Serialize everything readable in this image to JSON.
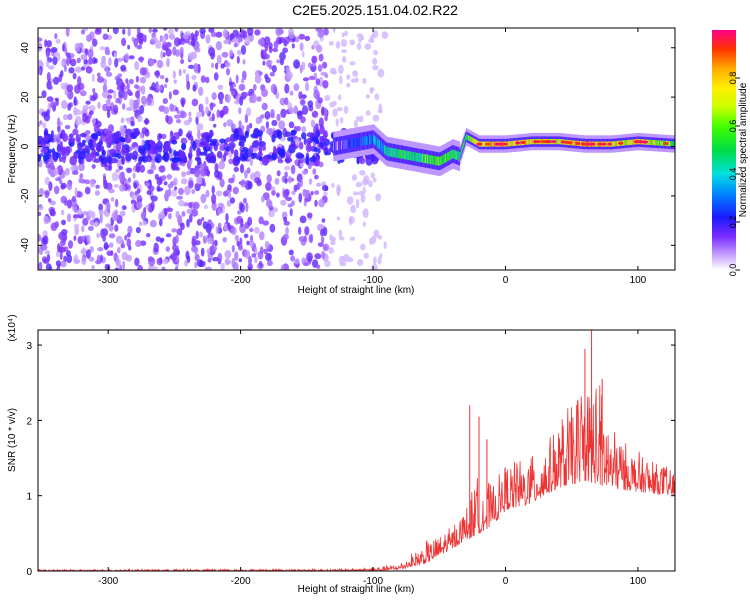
{
  "title": "C2E5.2025.151.04.02.R22",
  "chart_data": [
    {
      "type": "heatmap",
      "title": "C2E5.2025.151.04.02.R22",
      "xlabel": "Height of straight line (km)",
      "ylabel": "Frequency (Hz)",
      "xlim": [
        -353,
        128
      ],
      "ylim": [
        -50,
        48
      ],
      "xticks": [
        "-300",
        "-200",
        "-100",
        "0",
        "100"
      ],
      "yticks": [
        "-40",
        "-20",
        "0",
        "20",
        "40"
      ],
      "colorbar": {
        "label": "Normalized spectral amplitude",
        "range": [
          0,
          1
        ],
        "ticks": [
          "0.0",
          "0.2",
          "0.4",
          "0.6",
          "0.8"
        ]
      },
      "ridge": {
        "height_km": [
          -130,
          -120,
          -110,
          -100,
          -90,
          -80,
          -70,
          -60,
          -50,
          -40,
          -35,
          -30,
          -20,
          0,
          20,
          40,
          60,
          80,
          100,
          128
        ],
        "frequency_hz": [
          0,
          1,
          2,
          3,
          -2,
          -3,
          -4,
          -5,
          -6,
          -3,
          -4,
          4,
          1,
          1,
          2,
          2,
          1,
          1,
          2,
          1
        ],
        "amplitude": [
          0.1,
          0.2,
          0.25,
          0.3,
          0.4,
          0.5,
          0.45,
          0.55,
          0.6,
          0.5,
          0.45,
          0.55,
          0.75,
          0.8,
          0.75,
          0.7,
          0.85,
          0.7,
          0.75,
          0.6
        ]
      }
    },
    {
      "type": "line",
      "xlabel": "Height of straight line (km)",
      "ylabel": "SNR (10 * v/v)",
      "y_multiplier": "(x10⁴)",
      "xlim": [
        -353,
        128
      ],
      "ylim": [
        0,
        3.2
      ],
      "xticks": [
        "-300",
        "-200",
        "-100",
        "0",
        "100"
      ],
      "yticks": [
        "0",
        "1",
        "2",
        "3"
      ],
      "color": "#ee3333",
      "envelope": {
        "x": [
          -353,
          -120,
          -100,
          -80,
          -60,
          -40,
          -30,
          -20,
          -10,
          0,
          20,
          40,
          60,
          70,
          80,
          100,
          128
        ],
        "lower": [
          0,
          0,
          0,
          0.02,
          0.1,
          0.3,
          0.4,
          0.5,
          0.6,
          0.8,
          0.9,
          1.1,
          1.2,
          1.15,
          1.1,
          1.05,
          1.0
        ],
        "upper": [
          0.02,
          0.03,
          0.05,
          0.1,
          0.4,
          0.6,
          0.9,
          1.4,
          1.2,
          1.5,
          1.6,
          2.0,
          2.6,
          2.8,
          2.0,
          1.6,
          1.35
        ],
        "peaks": [
          [
            -27,
            2.2
          ],
          [
            -20,
            2.05
          ],
          [
            -14,
            1.75
          ],
          [
            65,
            3.2
          ],
          [
            60,
            2.95
          ],
          [
            73,
            2.55
          ]
        ]
      }
    }
  ]
}
